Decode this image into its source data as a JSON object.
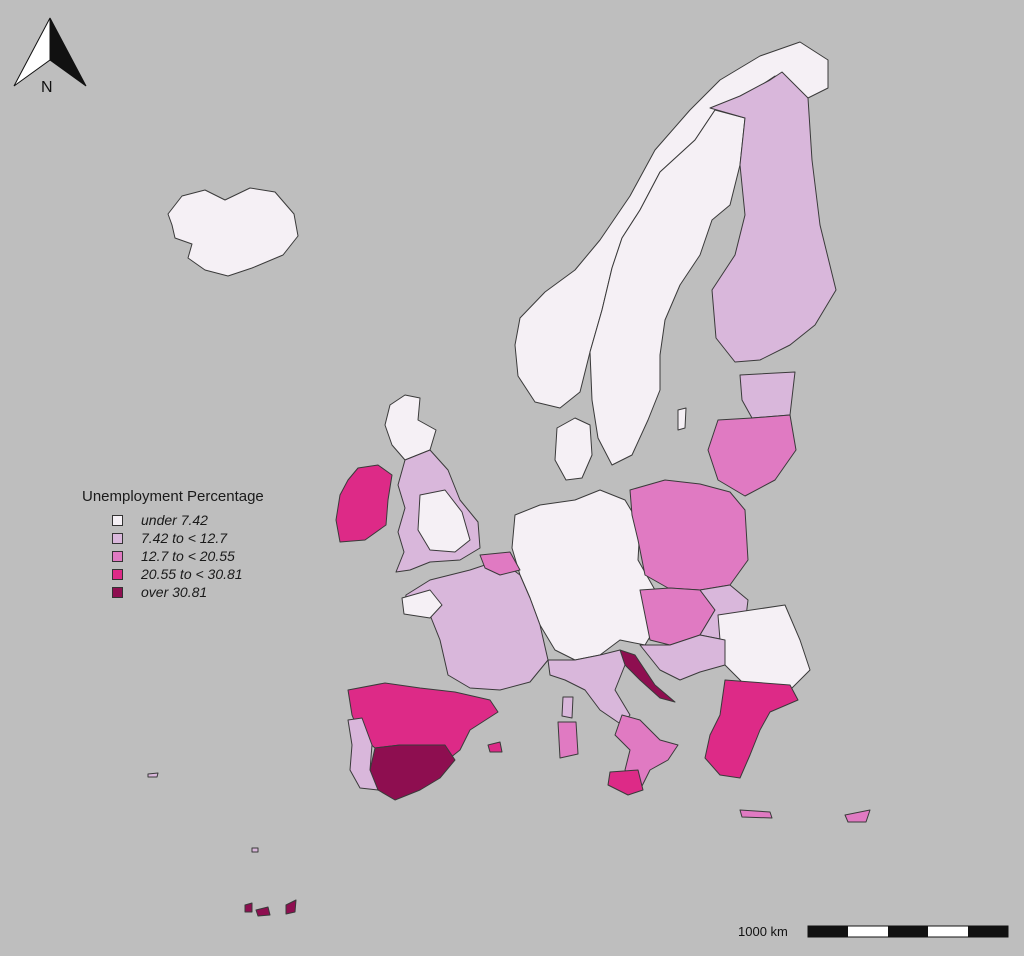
{
  "map": {
    "legend": {
      "title": "Unemployment Percentage",
      "classes": [
        {
          "label": "under 7.42",
          "color": "#f5f0f5"
        },
        {
          "label": "7.42  to < 12.7",
          "color": "#d9b7db"
        },
        {
          "label": "12.7  to < 20.55",
          "color": "#e07ac2"
        },
        {
          "label": "20.55  to < 30.81",
          "color": "#dd2a87"
        },
        {
          "label": "over 30.81",
          "color": "#8e0e50"
        }
      ]
    },
    "scale_bar": {
      "label": "1000 km"
    },
    "north_arrow": {
      "label": "N"
    },
    "colors": {
      "background": "#bebebe",
      "border": "#3a3a3a"
    }
  }
}
